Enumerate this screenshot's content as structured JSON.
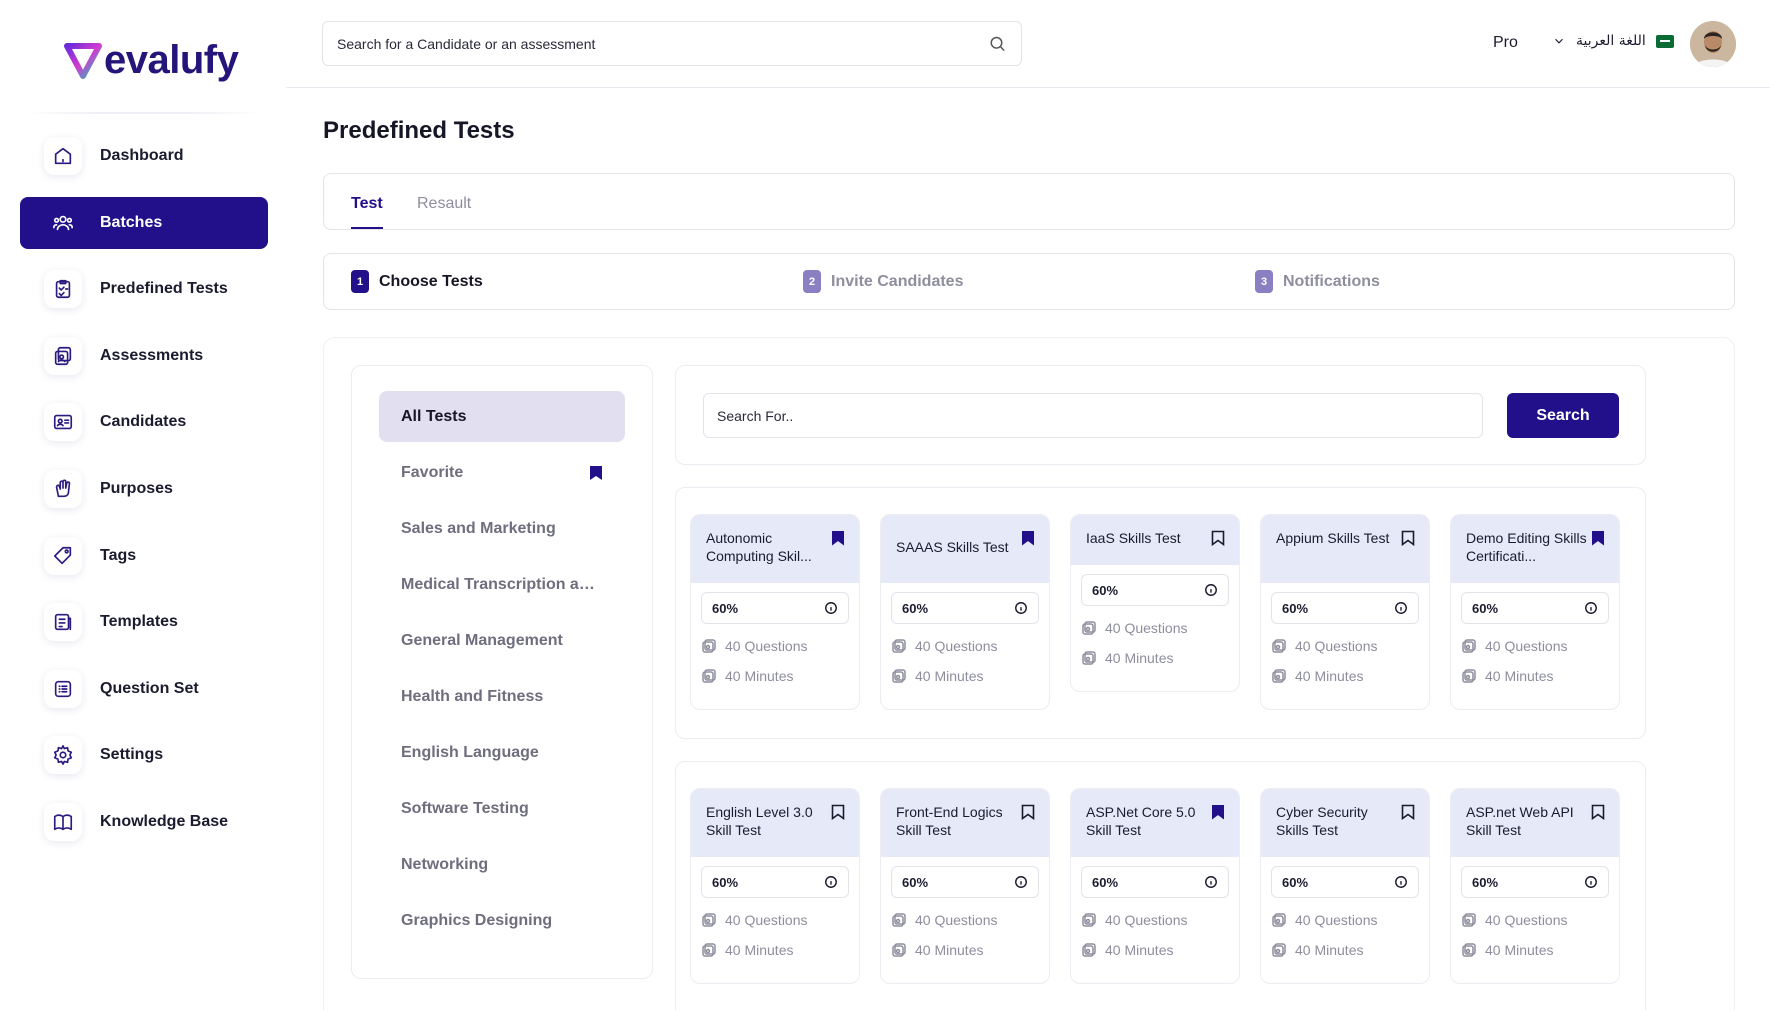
{
  "brand": {
    "name": "evalufy"
  },
  "topbar": {
    "search_placeholder": "Search for a Candidate or an assessment",
    "plan": "Pro",
    "language": "اللغة العربية"
  },
  "sidebar": {
    "items": [
      {
        "label": "Dashboard",
        "icon": "home-icon"
      },
      {
        "label": "Batches",
        "icon": "users-icon",
        "active": true
      },
      {
        "label": "Predefined Tests",
        "icon": "checklist-icon"
      },
      {
        "label": "Assessments",
        "icon": "assessment-icon"
      },
      {
        "label": "Candidates",
        "icon": "id-card-icon"
      },
      {
        "label": "Purposes",
        "icon": "hand-icon"
      },
      {
        "label": "Tags",
        "icon": "tag-icon"
      },
      {
        "label": "Templates",
        "icon": "template-icon"
      },
      {
        "label": "Question Set",
        "icon": "list-icon"
      },
      {
        "label": "Settings",
        "icon": "gear-icon"
      },
      {
        "label": "Knowledge Base",
        "icon": "book-icon"
      }
    ]
  },
  "page": {
    "title": "Predefined Tests",
    "tabs": [
      {
        "label": "Test",
        "active": true
      },
      {
        "label": "Resault",
        "active": false
      }
    ],
    "steps": [
      {
        "num": "1",
        "label": "Choose Tests",
        "active": true
      },
      {
        "num": "2",
        "label": "Invite Candidates",
        "active": false
      },
      {
        "num": "3",
        "label": "Notifications",
        "active": false
      }
    ]
  },
  "categories": [
    {
      "label": "All Tests",
      "active": true
    },
    {
      "label": "Favorite",
      "bookmark": true
    },
    {
      "label": "Sales and Marketing"
    },
    {
      "label": "Medical Transcription an..."
    },
    {
      "label": "General Management"
    },
    {
      "label": "Health and Fitness"
    },
    {
      "label": "English Language"
    },
    {
      "label": "Software Testing"
    },
    {
      "label": "Networking"
    },
    {
      "label": "Graphics Designing"
    }
  ],
  "test_search": {
    "placeholder": "Search For..",
    "button": "Search"
  },
  "tests": [
    {
      "title": "Autonomic Computing Skil...",
      "bookmarked": true,
      "pass": "60%",
      "questions": "40 Questions",
      "minutes": "40 Minutes"
    },
    {
      "title": "SAAAS Skills Test",
      "bookmarked": true,
      "pass": "60%",
      "questions": "40 Questions",
      "minutes": "40 Minutes"
    },
    {
      "title": "IaaS Skills Test",
      "bookmarked": false,
      "pass": "60%",
      "questions": "40 Questions",
      "minutes": "40 Minutes"
    },
    {
      "title": "Appium Skills Test",
      "bookmarked": false,
      "pass": "60%",
      "questions": "40 Questions",
      "minutes": "40 Minutes"
    },
    {
      "title": "Demo Editing Skills Certificati...",
      "bookmarked": true,
      "pass": "60%",
      "questions": "40 Questions",
      "minutes": "40 Minutes"
    },
    {
      "title": "English Level 3.0 Skill Test",
      "bookmarked": false,
      "pass": "60%",
      "questions": "40 Questions",
      "minutes": "40 Minutes"
    },
    {
      "title": "Front-End Logics Skill Test",
      "bookmarked": false,
      "pass": "60%",
      "questions": "40 Questions",
      "minutes": "40 Minutes"
    },
    {
      "title": "ASP.Net Core 5.0 Skill Test",
      "bookmarked": true,
      "pass": "60%",
      "questions": "40 Questions",
      "minutes": "40 Minutes"
    },
    {
      "title": "Cyber Security Skills Test",
      "bookmarked": false,
      "pass": "60%",
      "questions": "40 Questions",
      "minutes": "40 Minutes"
    },
    {
      "title": "ASP.net Web API Skill Test",
      "bookmarked": false,
      "pass": "60%",
      "questions": "40 Questions",
      "minutes": "40 Minutes"
    }
  ],
  "colors": {
    "primary": "#22108a",
    "card_header": "#e6e9f7",
    "muted_text": "#8e8e9e"
  }
}
